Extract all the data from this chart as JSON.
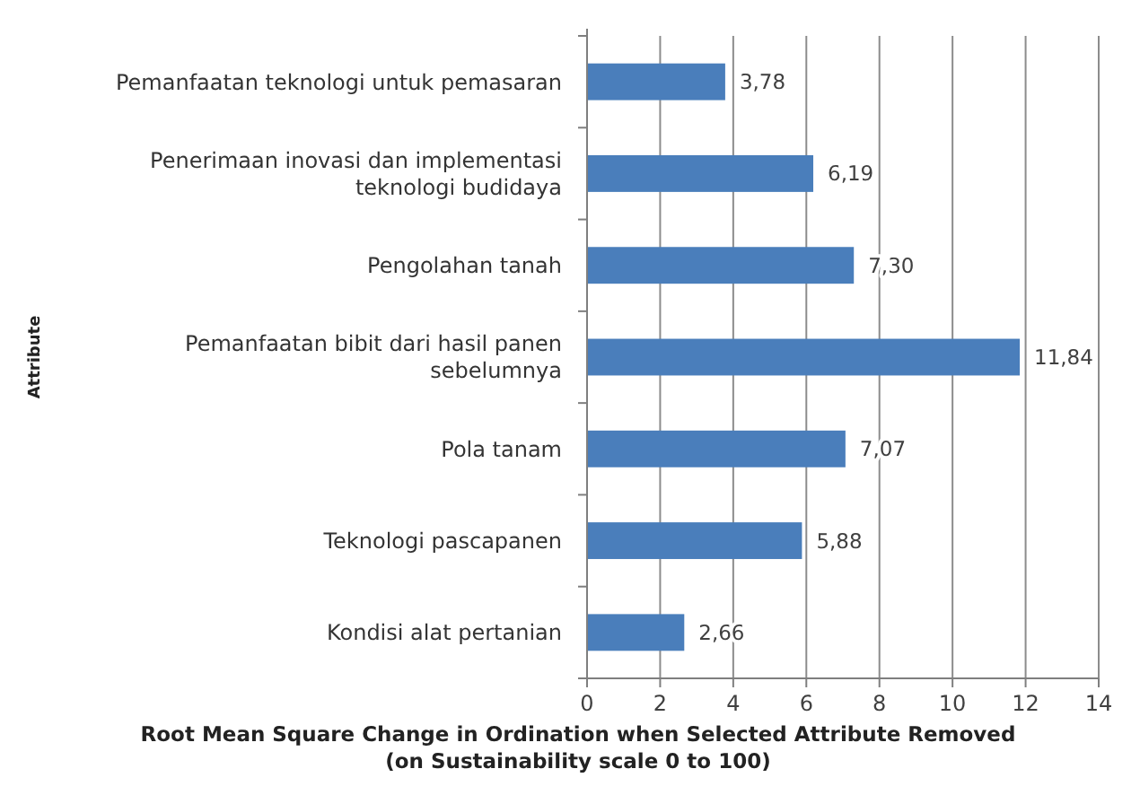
{
  "chart_data": {
    "type": "bar",
    "orientation": "horizontal",
    "categories": [
      "Pemanfaatan teknologi untuk pemasaran",
      "Penerimaan inovasi dan implementasi teknologi budidaya",
      "Pengolahan tanah",
      "Pemanfaatan bibit dari hasil panen sebelumnya",
      "Pola tanam",
      "Teknologi pascapanen",
      "Kondisi alat pertanian"
    ],
    "values": [
      3.78,
      6.19,
      7.3,
      11.84,
      7.07,
      5.88,
      2.66
    ],
    "value_labels": [
      "3,78",
      "6,19",
      "7,30",
      "11,84",
      "7,07",
      "5,88",
      "2,66"
    ],
    "color": "#4a7ebb",
    "xlim": [
      0,
      14
    ],
    "xticks": [
      0,
      2,
      4,
      6,
      8,
      10,
      12,
      14
    ],
    "grid": "x",
    "xlabel": "Root Mean Square Change in Ordination when Selected Attribute Removed (on Sustainability scale 0 to 100)",
    "ylabel": "Attribute"
  }
}
